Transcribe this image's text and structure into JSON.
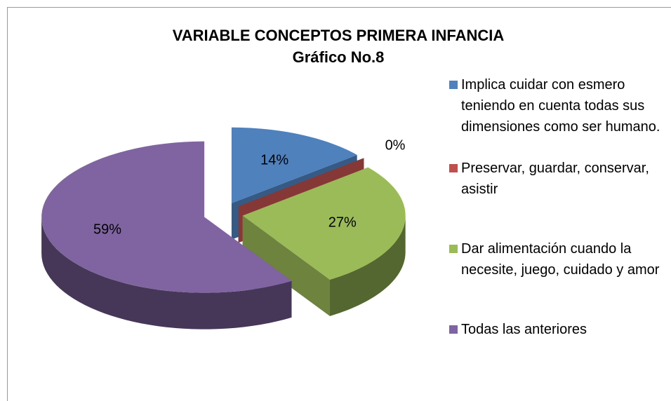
{
  "chart_data": {
    "type": "pie3d",
    "title": "VARIABLE CONCEPTOS PRIMERA INFANCIA",
    "subtitle": "Gráfico No.8",
    "categories": [
      "Implica cuidar con esmero teniendo en cuenta todas sus dimensiones como ser humano.",
      "Preservar, guardar, conservar, asistir",
      "Dar alimentación cuando la necesite, juego, cuidado y amor",
      "Todas las anteriores"
    ],
    "values": [
      14,
      0,
      27,
      59
    ],
    "value_labels": [
      "14%",
      "0%",
      "27%",
      "59%"
    ],
    "colors": [
      "#4f81bd",
      "#c0504d",
      "#9bbb59",
      "#8064a2"
    ],
    "legend": "right"
  }
}
